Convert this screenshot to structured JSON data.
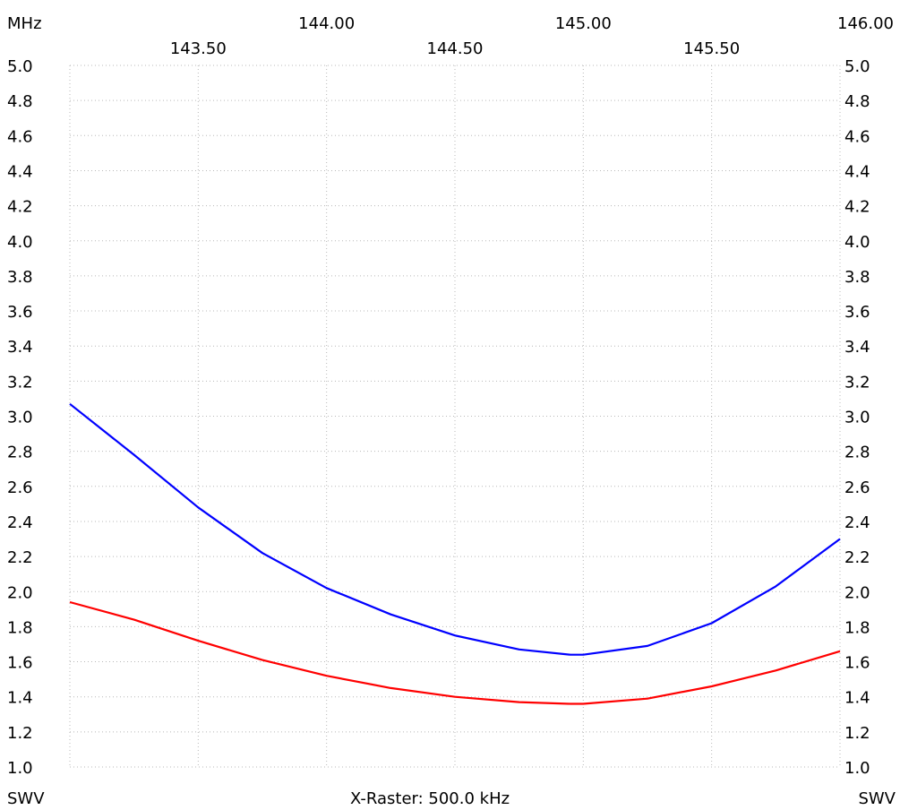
{
  "chart_data": {
    "type": "line",
    "x_unit_label": "MHz",
    "y_label_left": "SWV",
    "y_label_right": "SWV",
    "footer": "X-Raster: 500.0 kHz",
    "xlim": [
      143.0,
      146.0
    ],
    "ylim": [
      1.0,
      5.0
    ],
    "x_ticks_top_row": [
      "144.00",
      "145.00",
      "146.00"
    ],
    "x_ticks_second_row": [
      "143.50",
      "144.50",
      "145.50"
    ],
    "x_tick_values_top_row": [
      144.0,
      145.0,
      146.0
    ],
    "x_tick_values_second_row": [
      143.5,
      144.5,
      145.5
    ],
    "y_ticks": [
      "1.0",
      "1.2",
      "1.4",
      "1.6",
      "1.8",
      "2.0",
      "2.2",
      "2.4",
      "2.6",
      "2.8",
      "3.0",
      "3.2",
      "3.4",
      "3.6",
      "3.8",
      "4.0",
      "4.2",
      "4.4",
      "4.6",
      "4.8",
      "5.0"
    ],
    "grid": true,
    "series": [
      {
        "color": "#0000ff",
        "x": [
          143.0,
          143.25,
          143.5,
          143.75,
          144.0,
          144.25,
          144.5,
          144.75,
          144.95,
          145.0,
          145.25,
          145.5,
          145.75,
          146.0
        ],
        "y": [
          3.07,
          2.78,
          2.48,
          2.22,
          2.02,
          1.87,
          1.75,
          1.67,
          1.64,
          1.64,
          1.69,
          1.82,
          2.03,
          2.3
        ]
      },
      {
        "color": "#ff0000",
        "x": [
          143.0,
          143.25,
          143.5,
          143.75,
          144.0,
          144.25,
          144.5,
          144.75,
          144.95,
          145.0,
          145.25,
          145.5,
          145.75,
          146.0
        ],
        "y": [
          1.94,
          1.84,
          1.72,
          1.61,
          1.52,
          1.45,
          1.4,
          1.37,
          1.36,
          1.36,
          1.39,
          1.46,
          1.55,
          1.66
        ]
      }
    ]
  }
}
